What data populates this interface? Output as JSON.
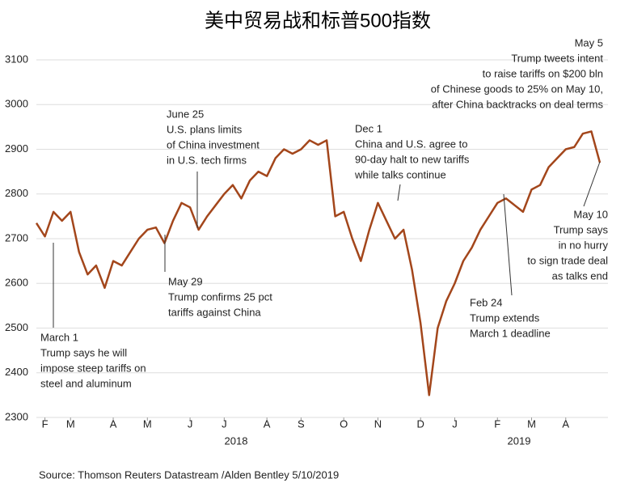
{
  "chart_data": {
    "type": "line",
    "title": "美中贸易战和标普500指数",
    "source": "Source: Thomson Reuters Datastream /Alden Bentley 5/10/2019",
    "year_labels": [
      "2018",
      "2019"
    ],
    "series": [
      {
        "color": "#a3461b",
        "values": [
          2735,
          2705,
          2760,
          2740,
          2760,
          2670,
          2620,
          2640,
          2590,
          2650,
          2640,
          2670,
          2700,
          2720,
          2725,
          2690,
          2740,
          2780,
          2770,
          2720,
          2750,
          2775,
          2800,
          2820,
          2790,
          2830,
          2850,
          2840,
          2880,
          2900,
          2890,
          2900,
          2920,
          2910,
          2920,
          2750,
          2760,
          2700,
          2650,
          2720,
          2780,
          2740,
          2700,
          2720,
          2630,
          2510,
          2350,
          2500,
          2560,
          2600,
          2650,
          2680,
          2720,
          2750,
          2780,
          2790,
          2775,
          2760,
          2810,
          2820,
          2860,
          2880,
          2900,
          2905,
          2935,
          2940,
          2870
        ]
      }
    ],
    "xlim": [
      0,
      66
    ],
    "xticks": [
      {
        "value": 1,
        "label": "F"
      },
      {
        "value": 4,
        "label": "M"
      },
      {
        "value": 9,
        "label": "A"
      },
      {
        "value": 13,
        "label": "M"
      },
      {
        "value": 18,
        "label": "J"
      },
      {
        "value": 22,
        "label": "J"
      },
      {
        "value": 27,
        "label": "A"
      },
      {
        "value": 31,
        "label": "S"
      },
      {
        "value": 36,
        "label": "O"
      },
      {
        "value": 40,
        "label": "N"
      },
      {
        "value": 45,
        "label": "D"
      },
      {
        "value": 49,
        "label": "J"
      },
      {
        "value": 54,
        "label": "F"
      },
      {
        "value": 58,
        "label": "M"
      },
      {
        "value": 62,
        "label": "A"
      }
    ],
    "ylim": [
      2300,
      3100
    ],
    "yticks": [
      2300,
      2400,
      2500,
      2600,
      2700,
      2800,
      2900,
      3000,
      3100
    ],
    "grid": true,
    "annotations": [
      {
        "lines": [
          "March 1",
          "Trump says he will",
          "impose steep tariffs on",
          "steel and aluminum"
        ]
      },
      {
        "lines": [
          "June 25",
          "U.S. plans limits",
          "of China investment",
          "in U.S. tech firms"
        ]
      },
      {
        "lines": [
          "May 29",
          "Trump confirms 25 pct",
          "tariffs against China"
        ]
      },
      {
        "lines": [
          "Dec 1",
          "China and U.S. agree to",
          "90-day halt to new tariffs",
          "while talks continue"
        ]
      },
      {
        "lines": [
          "May 5",
          "Trump tweets intent",
          "to raise tariffs on $200 bln",
          "of Chinese goods to 25% on May 10,",
          "after China backtracks on deal terms"
        ]
      },
      {
        "lines": [
          "May 10",
          "Trump says",
          "in no hurry",
          "to sign trade deal",
          "as talks end"
        ]
      },
      {
        "lines": [
          "Feb 24",
          "Trump extends",
          "March 1 deadline"
        ]
      }
    ]
  }
}
